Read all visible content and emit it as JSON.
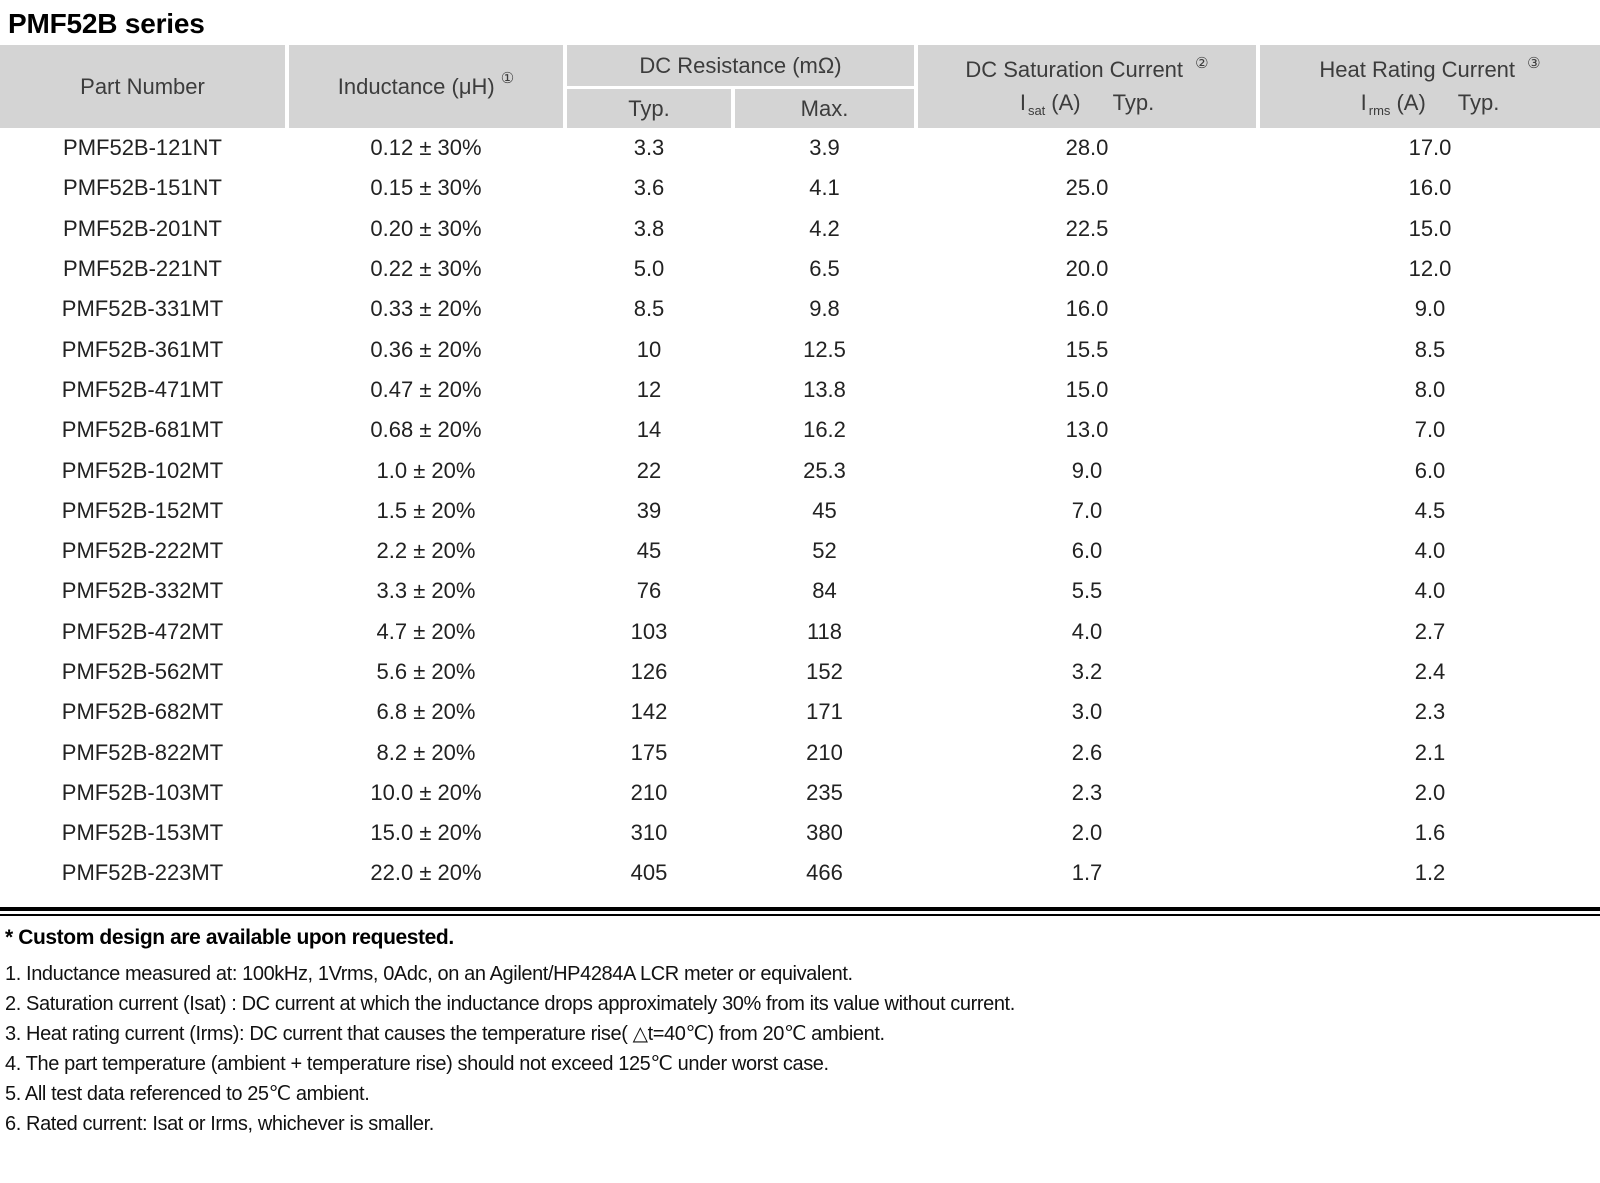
{
  "page": {
    "title": "PMF52B series"
  },
  "table": {
    "headers": {
      "part_number": "Part Number",
      "inductance": "Inductance (μH)",
      "inductance_note": "①",
      "dc_resistance": "DC Resistance (mΩ)",
      "typ": "Typ.",
      "max": "Max.",
      "saturation": "DC Saturation Current",
      "saturation_note": "②",
      "heat": "Heat Rating Current",
      "heat_note": "③",
      "i_symbol": "I",
      "sat_sub": "sat",
      "rms_sub": "rms",
      "amp_unit": "(A)"
    },
    "rows": [
      [
        "PMF52B-121NT",
        "0.12 ± 30%",
        "3.3",
        "3.9",
        "28.0",
        "17.0"
      ],
      [
        "PMF52B-151NT",
        "0.15 ± 30%",
        "3.6",
        "4.1",
        "25.0",
        "16.0"
      ],
      [
        "PMF52B-201NT",
        "0.20 ± 30%",
        "3.8",
        "4.2",
        "22.5",
        "15.0"
      ],
      [
        "PMF52B-221NT",
        "0.22 ± 30%",
        "5.0",
        "6.5",
        "20.0",
        "12.0"
      ],
      [
        "PMF52B-331MT",
        "0.33 ± 20%",
        "8.5",
        "9.8",
        "16.0",
        "9.0"
      ],
      [
        "PMF52B-361MT",
        "0.36 ± 20%",
        "10",
        "12.5",
        "15.5",
        "8.5"
      ],
      [
        "PMF52B-471MT",
        "0.47 ± 20%",
        "12",
        "13.8",
        "15.0",
        "8.0"
      ],
      [
        "PMF52B-681MT",
        "0.68 ± 20%",
        "14",
        "16.2",
        "13.0",
        "7.0"
      ],
      [
        "PMF52B-102MT",
        "1.0 ± 20%",
        "22",
        "25.3",
        "9.0",
        "6.0"
      ],
      [
        "PMF52B-152MT",
        "1.5 ± 20%",
        "39",
        "45",
        "7.0",
        "4.5"
      ],
      [
        "PMF52B-222MT",
        "2.2 ± 20%",
        "45",
        "52",
        "6.0",
        "4.0"
      ],
      [
        "PMF52B-332MT",
        "3.3 ± 20%",
        "76",
        "84",
        "5.5",
        "4.0"
      ],
      [
        "PMF52B-472MT",
        "4.7 ± 20%",
        "103",
        "118",
        "4.0",
        "2.7"
      ],
      [
        "PMF52B-562MT",
        "5.6 ± 20%",
        "126",
        "152",
        "3.2",
        "2.4"
      ],
      [
        "PMF52B-682MT",
        "6.8 ± 20%",
        "142",
        "171",
        "3.0",
        "2.3"
      ],
      [
        "PMF52B-822MT",
        "8.2 ± 20%",
        "175",
        "210",
        "2.6",
        "2.1"
      ],
      [
        "PMF52B-103MT",
        "10.0 ± 20%",
        "210",
        "235",
        "2.3",
        "2.0"
      ],
      [
        "PMF52B-153MT",
        "15.0 ± 20%",
        "310",
        "380",
        "2.0",
        "1.6"
      ],
      [
        "PMF52B-223MT",
        "22.0 ± 20%",
        "405",
        "466",
        "1.7",
        "1.2"
      ]
    ]
  },
  "footnotes": {
    "star": "* Custom design are available upon requested.",
    "notes": [
      "1. Inductance measured at: 100kHz, 1Vrms, 0Adc, on an Agilent/HP4284A LCR meter or equivalent.",
      "2. Saturation current (Isat) : DC current at which the inductance drops approximately 30% from its value without current.",
      "3. Heat rating current (Irms): DC current that causes the temperature rise( △t=40℃) from 20℃ ambient.",
      "4. The part temperature (ambient + temperature rise) should not exceed 125℃ under worst case.",
      "5. All test data referenced to 25℃ ambient.",
      "6. Rated current: Isat or Irms, whichever is smaller."
    ]
  },
  "colors": {
    "header_bg": "#d4d4d4",
    "rule": "#000000"
  }
}
